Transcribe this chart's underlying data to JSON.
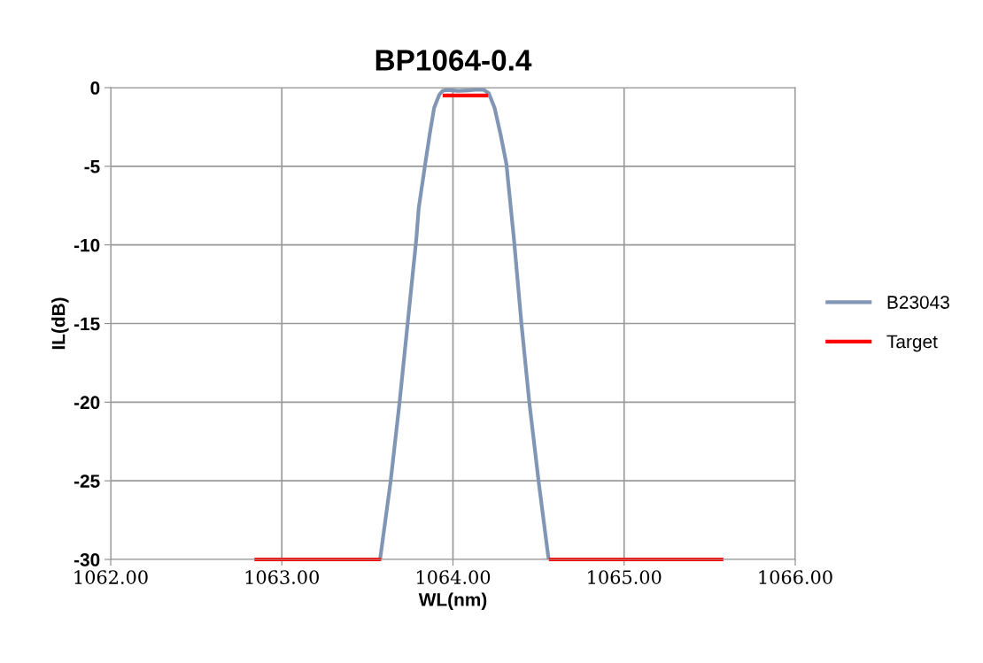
{
  "chart_data": {
    "type": "line",
    "title": "BP1064-0.4",
    "xlabel": "WL(nm)",
    "ylabel": "IL(dB)",
    "xlim": [
      1062,
      1066
    ],
    "xticks": [
      {
        "value": 1062,
        "label": "1062.00"
      },
      {
        "value": 1063,
        "label": "1063.00"
      },
      {
        "value": 1064,
        "label": "1064.00"
      },
      {
        "value": 1065,
        "label": "1065.00"
      },
      {
        "value": 1066,
        "label": "1066.00"
      }
    ],
    "ylim": [
      -30,
      0
    ],
    "yticks": [
      -30,
      -25,
      -20,
      -15,
      -10,
      -5,
      0
    ],
    "grid": true,
    "legend": "right",
    "series": [
      {
        "name": "B23043",
        "color": "#8096b4",
        "x": [
          1063.574,
          1063.636,
          1063.688,
          1063.735,
          1063.786,
          1063.8,
          1063.838,
          1063.864,
          1063.89,
          1063.92,
          1063.94,
          1063.97,
          1064.03,
          1064.09,
          1064.14,
          1064.18,
          1064.209,
          1064.243,
          1064.278,
          1064.312,
          1064.356,
          1064.4,
          1064.446,
          1064.5,
          1064.559
        ],
        "values": [
          -30,
          -25,
          -20,
          -15,
          -9.6,
          -7.65,
          -4.84,
          -2.97,
          -1.28,
          -0.45,
          -0.2,
          -0.15,
          -0.2,
          -0.18,
          -0.12,
          -0.14,
          -0.35,
          -1.28,
          -2.97,
          -4.84,
          -9.6,
          -15,
          -20,
          -25,
          -30
        ]
      },
      {
        "name": "Target",
        "color": "#ff0000",
        "x": [
          1062.84,
          1063.58,
          null,
          1063.94,
          1064.205,
          null,
          1064.56,
          1065.58
        ],
        "values": [
          -30,
          -30,
          null,
          -0.5,
          -0.5,
          null,
          -30,
          -30
        ]
      }
    ]
  }
}
